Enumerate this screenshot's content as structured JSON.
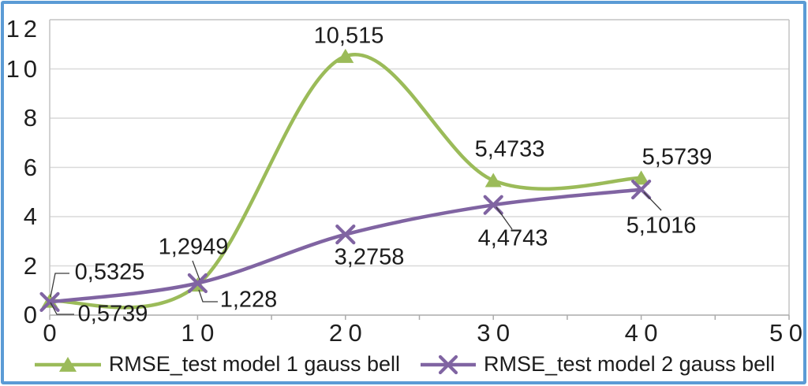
{
  "chart_data": {
    "type": "line",
    "smooth": true,
    "grid": "horizontal",
    "legend_position": "bottom",
    "x": [
      0,
      10,
      20,
      30,
      40
    ],
    "x_axis": {
      "min": 0,
      "max": 50,
      "tick_interval": 10,
      "minor_tick_interval": 5,
      "tick_labels": [
        "0",
        "10",
        "20",
        "30",
        "40",
        "50"
      ]
    },
    "y_axis": {
      "min": 0,
      "max": 12,
      "tick_interval": 2,
      "tick_labels": [
        "0",
        "2",
        "4",
        "6",
        "8",
        "10",
        "12"
      ]
    },
    "series": [
      {
        "name": "RMSE_test model 1 gauss bell",
        "color": "#9BBB59",
        "marker": "triangle",
        "values": [
          0.5739,
          1.228,
          10.515,
          5.4733,
          5.5739
        ],
        "point_labels": [
          "0,5739",
          "1,228",
          "10,515",
          "5,4733",
          "5,5739"
        ]
      },
      {
        "name": "RMSE_test model 2 gauss bell",
        "color": "#8064A2",
        "marker": "x",
        "values": [
          0.5325,
          1.2949,
          3.2758,
          4.4743,
          5.1016
        ],
        "point_labels": [
          "0,5325",
          "1,2949",
          "3,2758",
          "4,4743",
          "5,1016"
        ]
      }
    ],
    "colors": {
      "frame_border": "#5B9BD5",
      "gridline": "#D9D9D9",
      "plot_border": "#C3C3C3",
      "axis": "#ABABAB",
      "text": "#1c1c1c",
      "leader_line": "#3a3a3a"
    }
  }
}
